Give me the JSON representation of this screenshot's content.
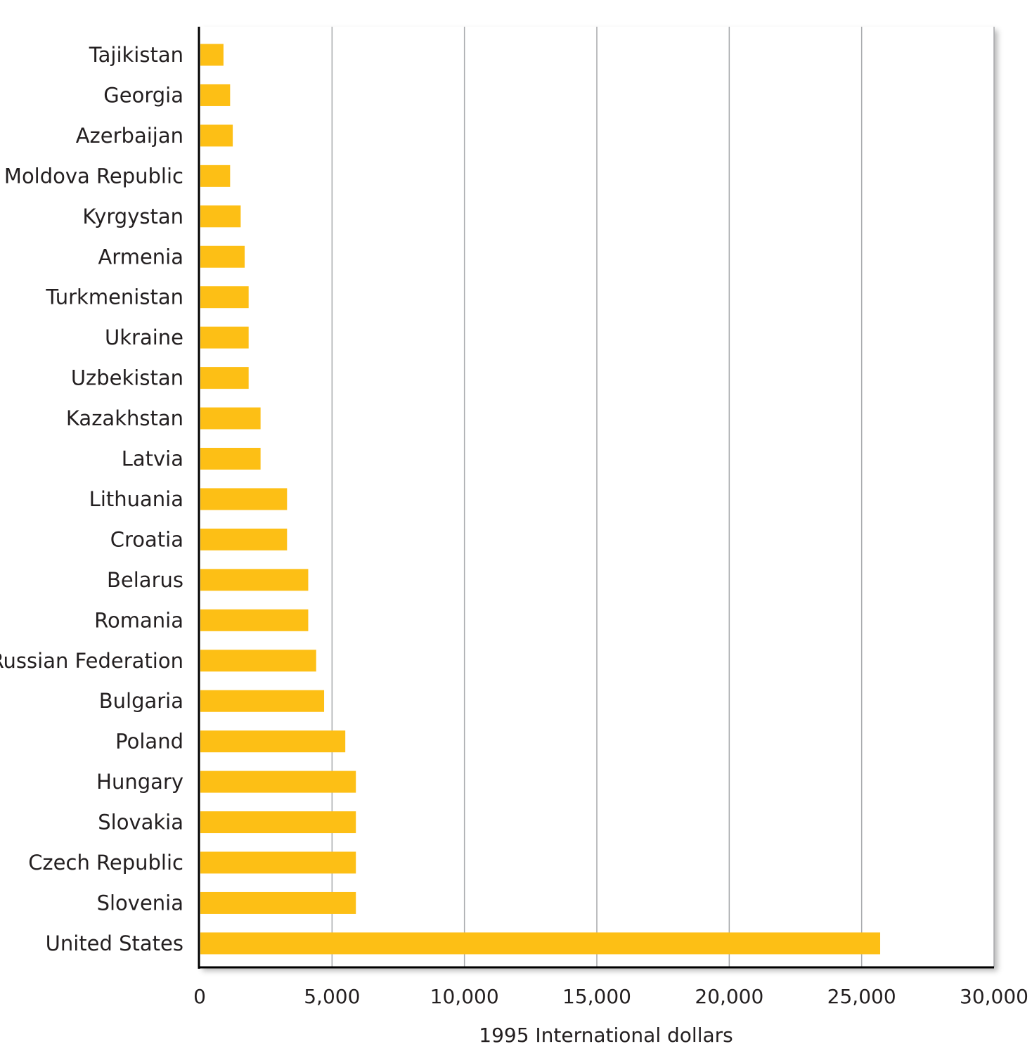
{
  "chart_data": {
    "type": "bar",
    "orientation": "horizontal",
    "title": "",
    "xlabel": "1995 International dollars",
    "ylabel": "",
    "xlim": [
      0,
      30000
    ],
    "xticks": [
      0,
      5000,
      10000,
      15000,
      20000,
      25000,
      30000
    ],
    "xtick_labels": [
      "0",
      "5,000",
      "10,000",
      "15,000",
      "20,000",
      "25,000",
      "30,000"
    ],
    "grid": "vertical",
    "legend": "none",
    "bar_color": "#FDBF15",
    "categories": [
      "Tajikistan",
      "Georgia",
      "Azerbaijan",
      "Moldova Republic",
      "Kyrgystan",
      "Armenia",
      "Turkmenistan",
      "Ukraine",
      "Uzbekistan",
      "Kazakhstan",
      "Latvia",
      "Lithuania",
      "Croatia",
      "Belarus",
      "Romania",
      "Russian Federation",
      "Bulgaria",
      "Poland",
      "Hungary",
      "Slovakia",
      "Czech Republic",
      "Slovenia",
      "United States"
    ],
    "values": [
      900,
      1150,
      1250,
      1150,
      1550,
      1700,
      1850,
      1850,
      1850,
      2300,
      2300,
      3300,
      3300,
      4100,
      4100,
      4400,
      4700,
      5500,
      5900,
      5900,
      5900,
      5900,
      25700
    ]
  }
}
